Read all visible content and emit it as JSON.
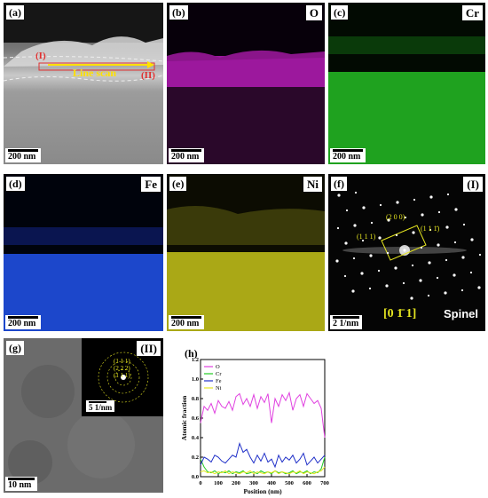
{
  "panels": {
    "a": {
      "label": "(a)",
      "scale": "200 nm",
      "line_scan": "Line scan",
      "region1": "(I)",
      "region2": "(II)"
    },
    "b": {
      "label": "(b)",
      "element": "O",
      "scale": "200 nm",
      "color": "#c21ec2"
    },
    "c": {
      "label": "(c)",
      "element": "Cr",
      "scale": "200 nm",
      "color": "#22b322"
    },
    "d": {
      "label": "(d)",
      "element": "Fe",
      "scale": "200 nm",
      "color": "#1f4fe0"
    },
    "e": {
      "label": "(e)",
      "element": "Ni",
      "scale": "200 nm",
      "color": "#c7c41a"
    },
    "f": {
      "label": "(f)",
      "region": "(I)",
      "scale": "2 1/nm",
      "zone_axis": "[0 1̄ 1]",
      "phase": "Spinel",
      "spots": [
        "(2 0 0)",
        "(1 1 1̄)",
        "(1 1 1)"
      ]
    },
    "g": {
      "label": "(g)",
      "region": "(II)",
      "scale": "10 nm",
      "inset_scale": "5 1/nm",
      "rings": [
        "(1 1 1)",
        "(2 2 2)",
        "(1 1 1)"
      ]
    },
    "h": {
      "label": "(h)"
    }
  },
  "chart_data": {
    "type": "line",
    "xlabel": "Position (nm)",
    "ylabel": "Atomic fraction",
    "xlim": [
      0,
      700
    ],
    "ylim": [
      0.0,
      1.2
    ],
    "xticks": [
      0,
      100,
      200,
      300,
      400,
      500,
      600,
      700
    ],
    "yticks": [
      0.0,
      0.2,
      0.4,
      0.6,
      0.8,
      1.0,
      1.2
    ],
    "legend_position": "top-left",
    "x": [
      0,
      20,
      40,
      60,
      80,
      100,
      120,
      140,
      160,
      180,
      200,
      220,
      240,
      260,
      280,
      300,
      320,
      340,
      360,
      380,
      400,
      420,
      440,
      460,
      480,
      500,
      520,
      540,
      560,
      580,
      600,
      620,
      640,
      660,
      680,
      700
    ],
    "series": [
      {
        "name": "O",
        "color": "#e040e0",
        "values": [
          0.55,
          0.72,
          0.68,
          0.75,
          0.65,
          0.78,
          0.72,
          0.7,
          0.77,
          0.68,
          0.82,
          0.85,
          0.74,
          0.8,
          0.72,
          0.84,
          0.7,
          0.82,
          0.76,
          0.85,
          0.55,
          0.8,
          0.72,
          0.84,
          0.78,
          0.86,
          0.68,
          0.8,
          0.84,
          0.72,
          0.85,
          0.8,
          0.75,
          0.78,
          0.7,
          0.4
        ]
      },
      {
        "name": "Cr",
        "color": "#22cc22",
        "values": [
          0.18,
          0.1,
          0.05,
          0.04,
          0.06,
          0.03,
          0.05,
          0.04,
          0.06,
          0.03,
          0.05,
          0.04,
          0.06,
          0.03,
          0.04,
          0.05,
          0.03,
          0.06,
          0.04,
          0.05,
          0.03,
          0.06,
          0.04,
          0.05,
          0.03,
          0.04,
          0.06,
          0.03,
          0.05,
          0.04,
          0.06,
          0.03,
          0.05,
          0.04,
          0.08,
          0.2
        ]
      },
      {
        "name": "Fe",
        "color": "#2030c8",
        "values": [
          0.12,
          0.2,
          0.18,
          0.15,
          0.22,
          0.2,
          0.16,
          0.14,
          0.18,
          0.22,
          0.2,
          0.34,
          0.25,
          0.28,
          0.2,
          0.14,
          0.22,
          0.16,
          0.24,
          0.15,
          0.18,
          0.1,
          0.22,
          0.15,
          0.2,
          0.17,
          0.22,
          0.14,
          0.18,
          0.24,
          0.12,
          0.16,
          0.2,
          0.14,
          0.18,
          0.22
        ]
      },
      {
        "name": "Ni",
        "color": "#e6e620",
        "values": [
          0.05,
          0.06,
          0.04,
          0.05,
          0.03,
          0.05,
          0.04,
          0.06,
          0.03,
          0.05,
          0.04,
          0.03,
          0.05,
          0.04,
          0.06,
          0.03,
          0.05,
          0.04,
          0.03,
          0.05,
          0.04,
          0.06,
          0.03,
          0.05,
          0.04,
          0.03,
          0.05,
          0.04,
          0.06,
          0.03,
          0.05,
          0.04,
          0.03,
          0.05,
          0.06,
          0.1
        ]
      }
    ]
  }
}
